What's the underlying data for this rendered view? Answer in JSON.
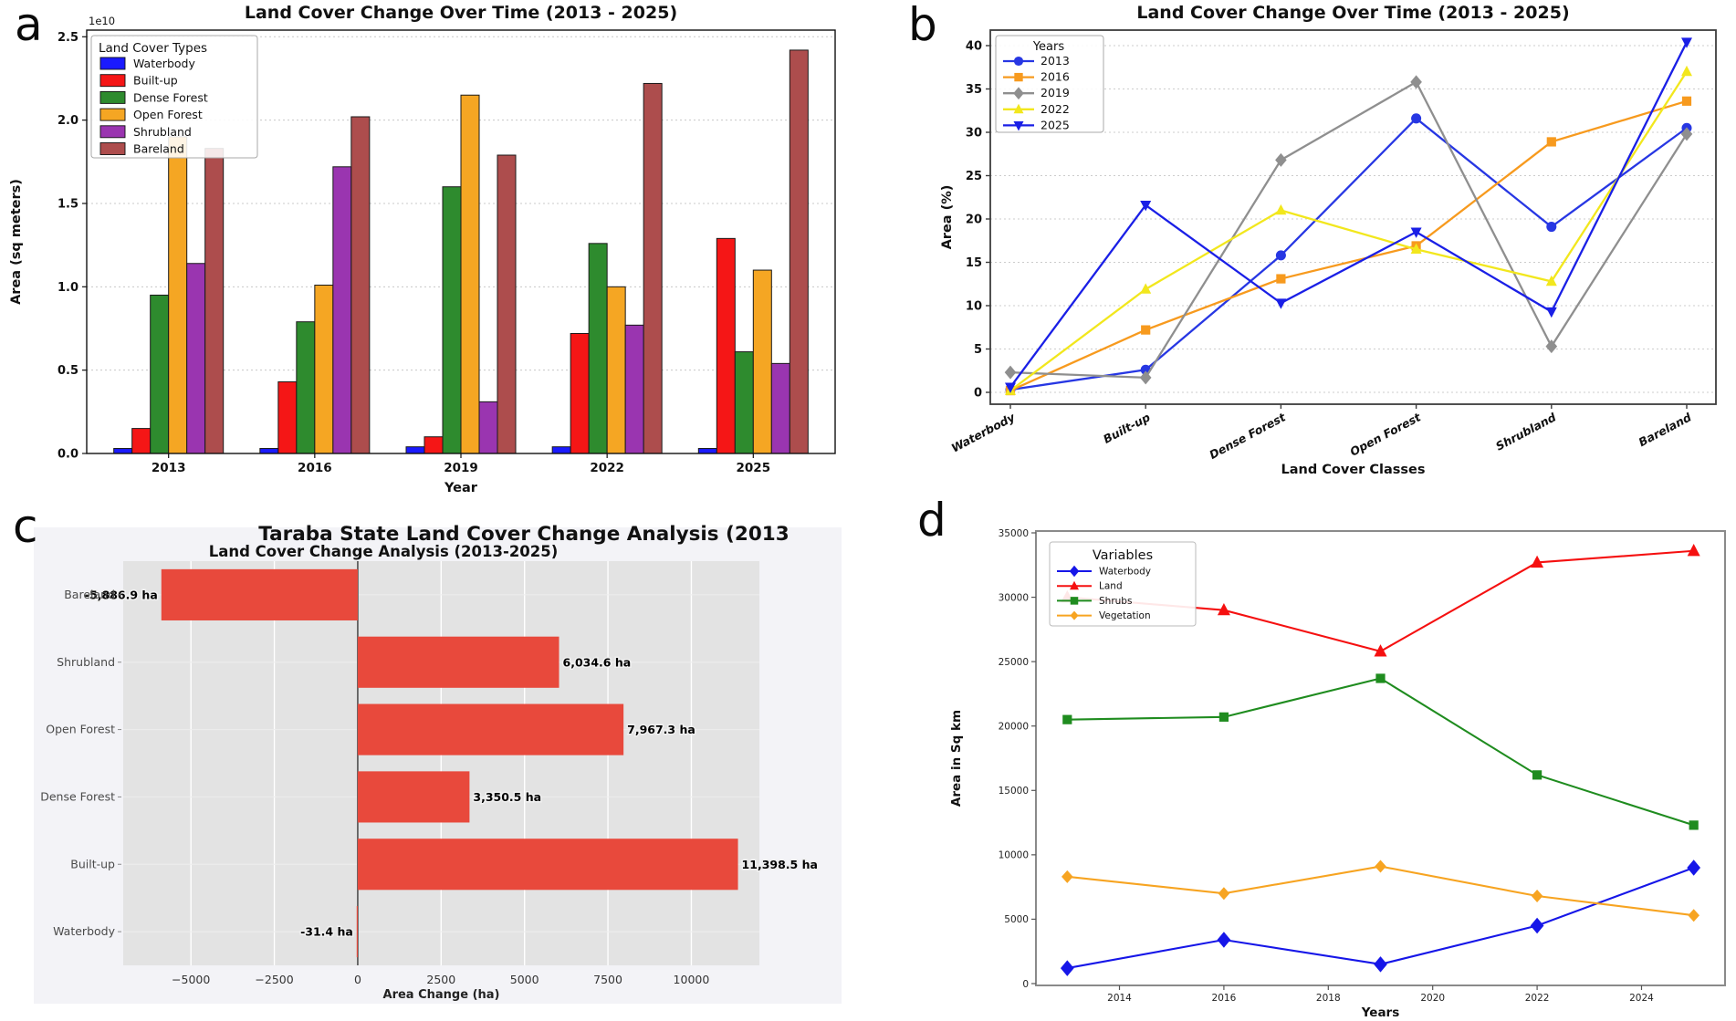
{
  "panel_labels": [
    "a",
    "b",
    "c",
    "d"
  ],
  "chart_data": [
    {
      "panel": "a",
      "type": "bar",
      "title": "Land Cover Change Over Time (2013 - 2025)",
      "xlabel": "Year",
      "ylabel": "Area (sq meters)",
      "offset_text": "1e10",
      "legend_title": "Land Cover Types",
      "legend_position": "upper-left",
      "grid": "dashed-horizontal",
      "categories": [
        "2013",
        "2016",
        "2019",
        "2022",
        "2025"
      ],
      "ylim": [
        0,
        2.54
      ],
      "yticks": [
        0.0,
        0.5,
        1.0,
        1.5,
        2.0,
        2.5
      ],
      "unit_multiplier": "1e10",
      "series": [
        {
          "name": "Waterbody",
          "color": "#1a1aff",
          "values": [
            0.03,
            0.03,
            0.04,
            0.04,
            0.03
          ]
        },
        {
          "name": "Built-up",
          "color": "#f51616",
          "values": [
            0.15,
            0.43,
            0.1,
            0.72,
            1.29
          ]
        },
        {
          "name": "Dense Forest",
          "color": "#2e8b2e",
          "values": [
            0.95,
            0.79,
            1.6,
            1.26,
            0.61
          ]
        },
        {
          "name": "Open Forest",
          "color": "#f5a623",
          "values": [
            1.9,
            1.01,
            2.15,
            1.0,
            1.1
          ]
        },
        {
          "name": "Shrubland",
          "color": "#9a35b0",
          "values": [
            1.14,
            1.72,
            0.31,
            0.77,
            0.54
          ]
        },
        {
          "name": "Bareland",
          "color": "#ad4d4d",
          "values": [
            1.83,
            2.02,
            1.79,
            2.22,
            2.42
          ]
        }
      ]
    },
    {
      "panel": "b",
      "type": "line",
      "title": "Land Cover Change Over Time (2013 - 2025)",
      "xlabel": "Land Cover Classes",
      "ylabel": "Area (%)",
      "legend_title": "Years",
      "legend_position": "upper-left",
      "grid": "dashed-horizontal",
      "categories": [
        "Waterbody",
        "Built-up",
        "Dense Forest",
        "Open Forest",
        "Shrubland",
        "Bareland"
      ],
      "ylim": [
        -1.5,
        42
      ],
      "yticks": [
        0,
        5,
        10,
        15,
        20,
        25,
        30,
        35,
        40
      ],
      "series": [
        {
          "name": "2013",
          "color": "#2737e3",
          "marker": "circle",
          "values": [
            0.3,
            2.6,
            15.8,
            31.6,
            19.1,
            30.5
          ]
        },
        {
          "name": "2016",
          "color": "#f79a1e",
          "marker": "square",
          "values": [
            0.2,
            7.2,
            13.1,
            16.9,
            28.9,
            33.6
          ]
        },
        {
          "name": "2019",
          "color": "#8f8f8f",
          "marker": "diamond",
          "values": [
            2.3,
            1.7,
            26.8,
            35.8,
            5.3,
            29.8
          ]
        },
        {
          "name": "2022",
          "color": "#f2e71d",
          "marker": "triangle-up",
          "values": [
            0.2,
            11.9,
            21.0,
            16.5,
            12.8,
            37.0
          ]
        },
        {
          "name": "2025",
          "color": "#1a1fe6",
          "marker": "triangle-down",
          "values": [
            0.6,
            21.6,
            10.3,
            18.5,
            9.3,
            40.4
          ]
        }
      ]
    },
    {
      "panel": "c",
      "type": "hbar",
      "title": "Taraba State Land Cover Change Analysis (2013",
      "subtitle": "Land Cover Change Analysis (2013-2025)",
      "xlabel": "Area Change (ha)",
      "style": "ggplot-gray",
      "bar_color": "#e8493c",
      "categories": [
        "Bareland",
        "Shrubland",
        "Open Forest",
        "Dense Forest",
        "Built-up",
        "Waterbody"
      ],
      "values": [
        -5886.9,
        6034.6,
        7967.3,
        3350.5,
        11398.5,
        -31.4
      ],
      "bar_labels": [
        "-5,886.9 ha",
        "6,034.6 ha",
        "7,967.3 ha",
        "3,350.5 ha",
        "11,398.5 ha",
        "-31.4 ha"
      ],
      "xticks": [
        -5000,
        -2500,
        0,
        2500,
        5000,
        7500,
        10000
      ],
      "xlim": [
        -7030,
        12040
      ]
    },
    {
      "panel": "d",
      "type": "line-xy",
      "title": "",
      "xlabel": "Years",
      "ylabel": "Area in Sq km",
      "legend_title": "Variables",
      "legend_position": "upper-left",
      "grid": "none",
      "x": [
        2013,
        2016,
        2019,
        2022,
        2025
      ],
      "xticks": [
        2014,
        2016,
        2018,
        2020,
        2022,
        2024
      ],
      "xlim": [
        2012.4,
        2025.6
      ],
      "ylim": [
        0,
        35500
      ],
      "yticks": [
        0,
        5000,
        10000,
        15000,
        20000,
        25000,
        30000,
        35000
      ],
      "series": [
        {
          "name": "Waterbody",
          "color": "#1616e8",
          "marker": "diamond",
          "values": [
            1200,
            3400,
            1500,
            4500,
            9000
          ]
        },
        {
          "name": "Land",
          "color": "#f51010",
          "marker": "triangle-up",
          "values": [
            30000,
            29000,
            25800,
            32700,
            33600
          ]
        },
        {
          "name": "Shrubs",
          "color": "#1f8c1f",
          "marker": "square",
          "values": [
            20500,
            20700,
            23700,
            16200,
            12300
          ]
        },
        {
          "name": "Vegetation",
          "color": "#f7a421",
          "marker": "diamond-sm",
          "values": [
            8300,
            7000,
            9100,
            6800,
            5300
          ]
        }
      ]
    }
  ]
}
